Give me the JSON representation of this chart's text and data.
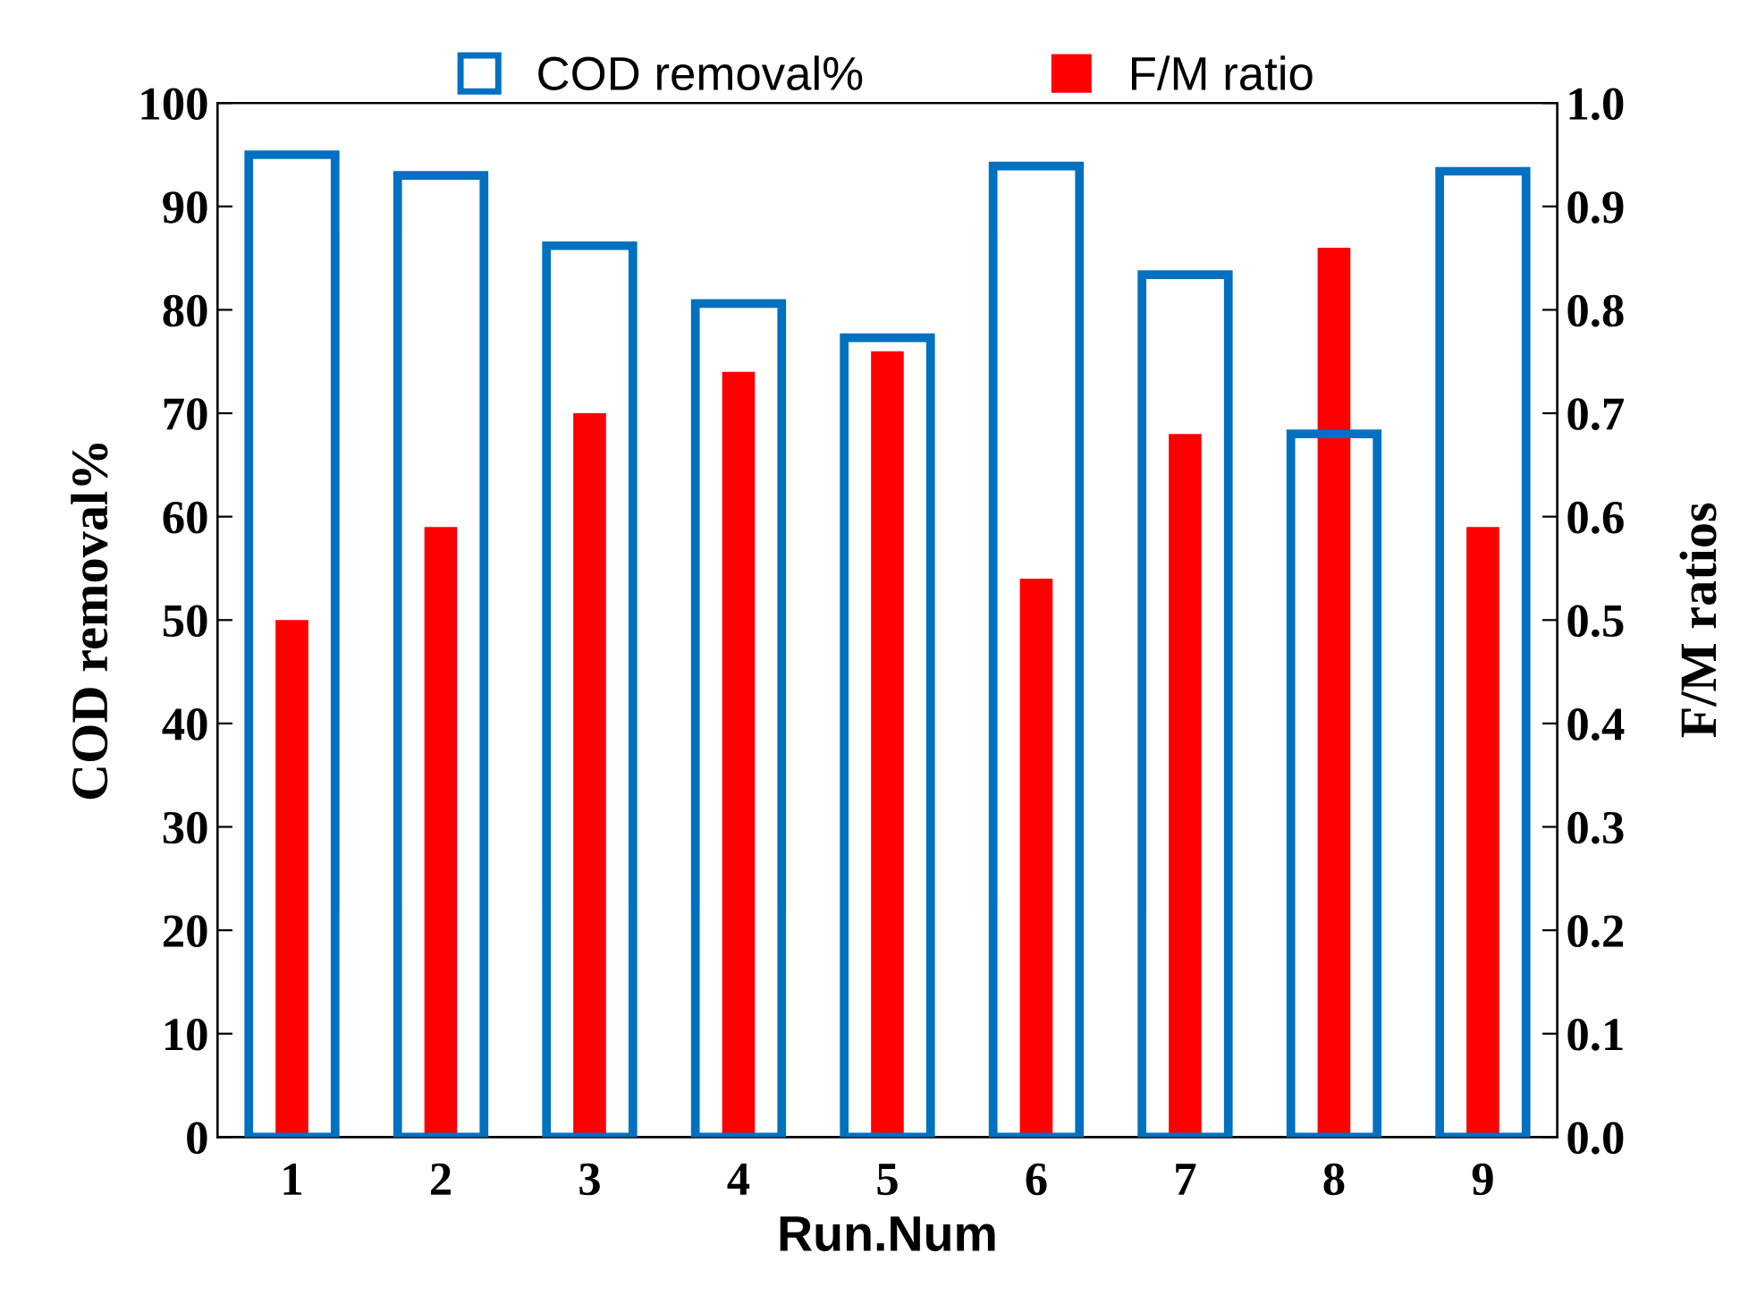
{
  "chart_data": {
    "type": "bar",
    "xlabel": "Run.Num",
    "ylabel": "COD removal%",
    "y2label": "F/M ratios",
    "categories": [
      "1",
      "2",
      "3",
      "4",
      "5",
      "6",
      "7",
      "8",
      "9"
    ],
    "series": [
      {
        "name": "COD removal%",
        "color": "#0070c0",
        "values": [
          95,
          93,
          86.2,
          80.6,
          77.3,
          93.9,
          83.4,
          68,
          93.4
        ]
      },
      {
        "name": "F/M ratio",
        "color": "#ff0000",
        "axis": "y2",
        "values": [
          0.5,
          0.59,
          0.7,
          0.74,
          0.76,
          0.54,
          0.68,
          0.86,
          0.59
        ]
      }
    ],
    "ylim": [
      0,
      100
    ],
    "yticks": [
      0,
      10,
      20,
      30,
      40,
      50,
      60,
      70,
      80,
      90,
      100
    ],
    "y2lim": [
      0,
      1
    ],
    "y2ticks": [
      {
        "value": 0,
        "label": "0.0"
      },
      {
        "value": 0.1,
        "label": "0.1"
      },
      {
        "value": 0.2,
        "label": "0.2"
      },
      {
        "value": 0.3,
        "label": "0.3"
      },
      {
        "value": 0.4,
        "label": "0.4"
      },
      {
        "value": 0.5,
        "label": "0.5"
      },
      {
        "value": 0.6,
        "label": "0.6"
      },
      {
        "value": 0.7,
        "label": "0.7"
      },
      {
        "value": 0.8,
        "label": "0.8"
      },
      {
        "value": 0.9,
        "label": "0.9"
      },
      {
        "value": 1,
        "label": "1.0"
      }
    ],
    "legend": "top",
    "grid": false
  }
}
